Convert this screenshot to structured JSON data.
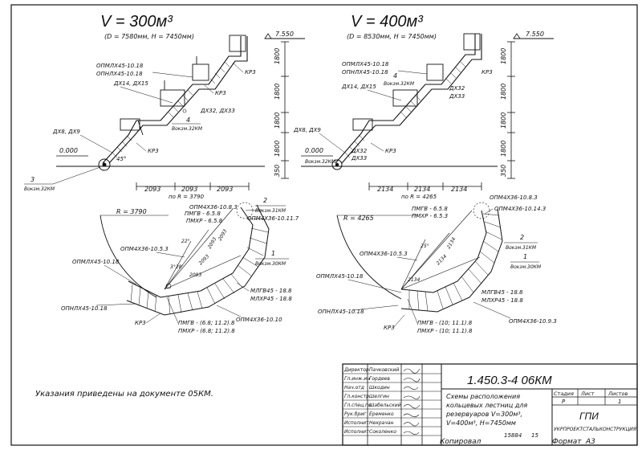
{
  "left_view": {
    "title": "V = 300м³",
    "subtitle": "(D = 7580мм, Н = 7450мм)",
    "level": "7.550",
    "zero": "0.000",
    "heights": [
      "1800",
      "1800",
      "1800",
      "1800",
      "350"
    ],
    "spans": [
      "2093",
      "2093",
      "2093"
    ],
    "radius_note": "по R = 3790",
    "labels": {
      "oipm_18_a": "ОПМЛХ45-10.18",
      "oipm_18_b": "ОПНЛХ45-10.18",
      "dh14": "ДХ14, ДХ15",
      "dh8": "ДХ8, ДХ9",
      "kr3_top": "КР3",
      "kr3_mid": "КР3",
      "kr3_low": "КР3",
      "dh32": "ДХ32, ДХ33",
      "angle": "45°",
      "call3_num": "3",
      "call3_txt": "Вокзм.32КМ",
      "call4_num": "4",
      "call4_txt": "Вокзм.32КМ"
    }
  },
  "right_view": {
    "title": "V = 400м³",
    "subtitle": "(D = 8530мм, Н = 7450мм)",
    "level": "7.550",
    "zero": "0.000",
    "heights": [
      "1800",
      "1800",
      "1800",
      "1800",
      "350"
    ],
    "spans": [
      "2134",
      "2134",
      "2134"
    ],
    "radius_note": "по R = 4265",
    "labels": {
      "oipm_18_a": "ОПМЛХ45-10.18",
      "oipm_18_b": "ОПНЛХ45-10.18",
      "dh14": "ДХ14, ДХ15",
      "dh8": "ДХ8, ДХ9",
      "kr3_top": "КР3",
      "kr3_low": "КР3",
      "dh32_a": "ДХ32",
      "dh32_b": "ДХ33",
      "dh32_c": "ДХ32",
      "dh33_c": "ДХ33",
      "call4_num": "4",
      "call4_txt": "Вокзм.32КМ",
      "call_low_txt": "Вокзм.32КМ"
    }
  },
  "left_plan": {
    "radius": "R = 3790",
    "labels": {
      "pmgv": "ПМГВ - 6.5.8",
      "pmhr": "ПМХР - 6.5.8",
      "opm83": "ОПМ4Х36-10.8.3",
      "opm117": "ОПМ4Х36-10.11.7",
      "call2_num": "2",
      "call2_txt": "Вокзм.31КМ",
      "opm53": "ОПМ4Х36-10.5.3",
      "oipm18": "ОПМЛХ45-10.18",
      "call1_num": "1",
      "call1_txt": "Вокзм.30КМ",
      "mlg": "МЛГВ45 - 18.8",
      "mlh": "МЛХР45 - 18.8",
      "oip18b": "ОПНЛХ45-10.18",
      "kr3": "КР3",
      "pmgv2": "ПМГВ - (6.8; 11.2).8",
      "pmhr2": "ПМХР - (6.8; 11.2).8",
      "opm1010": "ОПМ4Х36-10.10",
      "angle_a": "22°",
      "angle_b": "3°28'",
      "dim_a": "2093",
      "dim_b": "2093",
      "dim_c": "2093",
      "dim_d": "2093"
    }
  },
  "right_plan": {
    "radius": "R = 4265",
    "labels": {
      "pmgv": "ПМГВ - 6.5.8",
      "pmhr": "ПМХР - 6.5.3",
      "opm83": "ОПМ4Х36-10.8.3",
      "opm143": "ОПМ4Х36-10.14.3",
      "call2_num": "2",
      "call2_txt": "Вокзм.31КМ",
      "opm53": "ОПМ4Х36-10.5.3",
      "oip18": "ОПМЛХ45-10.18",
      "call1_num": "1",
      "call1_txt": "Вокзм.30КМ",
      "mlg": "МЛГВ45 - 18.8",
      "mlh": "МЛХР45 - 18.8",
      "oip18b": "ОПНЛХ45-10.18",
      "kr3": "КР3",
      "pmgv2": "ПМГВ - (10; 11.1).8",
      "pmhr2": "ПМХР - (10; 11.1).8",
      "opm93": "ОПМ4Х36-10.9.3",
      "angle_a": "25°",
      "dim_a": "2134",
      "dim_b": "2134",
      "dim_c": "2134"
    }
  },
  "note": "Указания приведены на документе 05КМ.",
  "title_block": {
    "code": "1.450.3-4  06КМ",
    "description_lines": [
      "Схемы расположения",
      "кольцевых лестниц  для",
      "резервуаров  V=300м³,",
      "V=400м³, Н=7450мм"
    ],
    "col_headers": [
      "Стадия",
      "Лист",
      "Листов"
    ],
    "col_values": [
      "Р",
      "",
      "1"
    ],
    "org_short": "ГПИ",
    "org_full": "УКРПРОЕКТСТАЛЬКОНСТРУКЦИЯ",
    "roles": [
      "Директор",
      "Гл.инж.ин",
      "Нач.отд",
      "Гл.констр",
      "Гл.спец.по",
      "Рук.бриг",
      "Исполнит",
      "Исполнит"
    ],
    "names": [
      "Пачковский",
      "Гордеев",
      "Шкодин",
      "Шелгин",
      "Шабельский",
      "Еременко",
      "Некрачан",
      "Соколенко"
    ]
  },
  "footer": {
    "copied_by": "Копировал",
    "copy_num": "15884",
    "copy_sheet": "15",
    "format_label": "Формат",
    "format_value": "А3"
  }
}
